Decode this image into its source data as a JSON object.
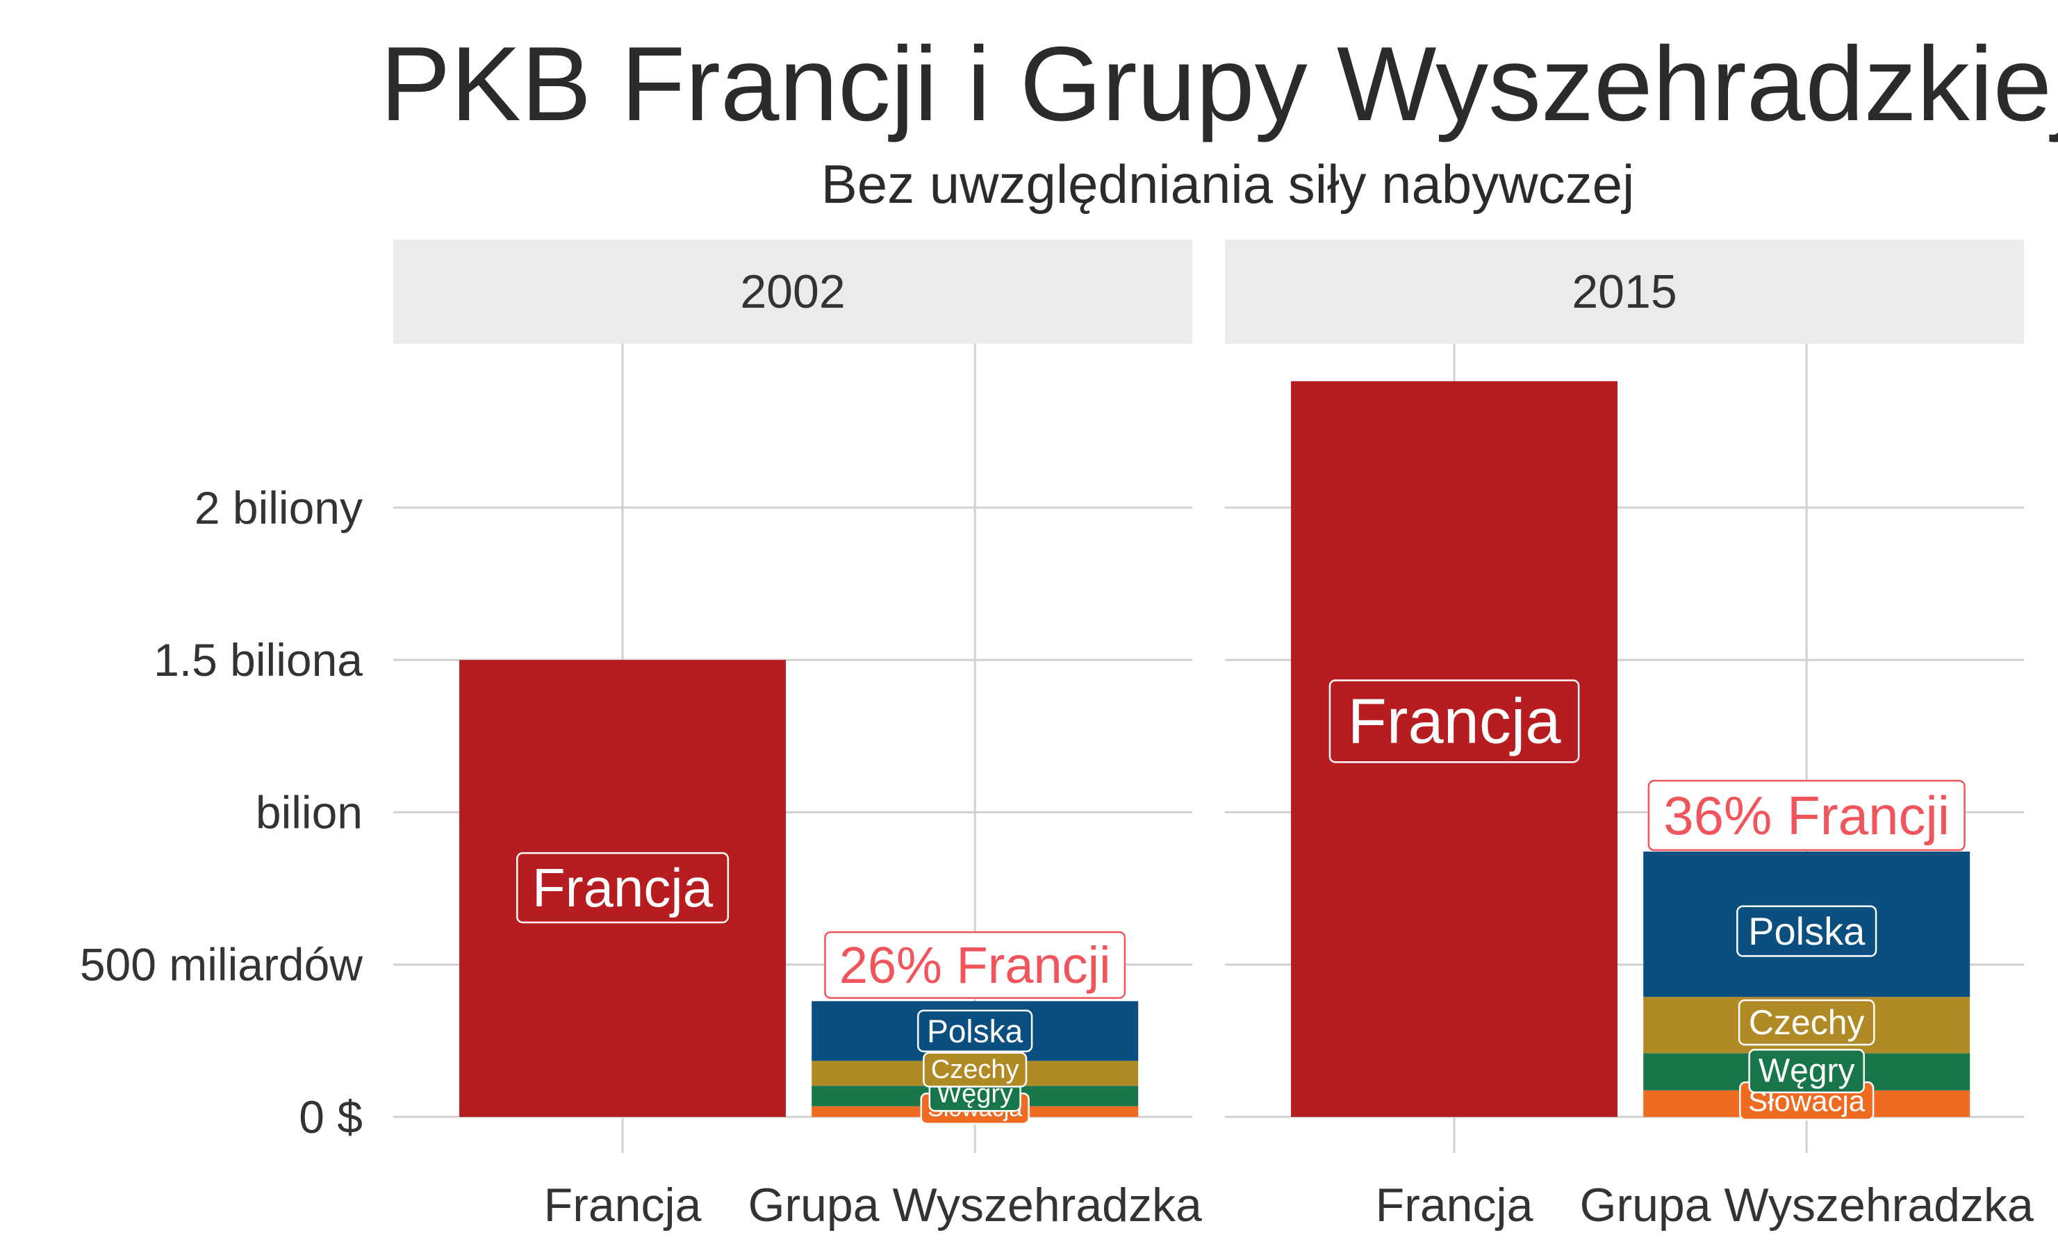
{
  "chart_data": {
    "type": "bar",
    "title": "PKB Francji i Grupy Wyszehradzkiej",
    "subtitle": "Bez uwzględniania siły nabywczej",
    "categories": [
      "Francja",
      "Grupa Wyszehradzka"
    ],
    "y_ticks": [
      {
        "value": 0,
        "label": "0 $"
      },
      {
        "value": 500,
        "label": "500 miliardów"
      },
      {
        "value": 1000,
        "label": "bilion"
      },
      {
        "value": 1500,
        "label": "1.5 biliona"
      },
      {
        "value": 2000,
        "label": "2 biliony"
      }
    ],
    "ylim": [
      0,
      2550
    ],
    "y_unit": "miliardy USD",
    "grid": true,
    "panels": [
      {
        "facet": "2002",
        "bars": [
          {
            "category": "Francja",
            "stack": [
              {
                "name": "Francja",
                "value": 1500,
                "color": "#b71c20"
              }
            ]
          },
          {
            "category": "Grupa Wyszehradzka",
            "share_label": "26% Francji",
            "stack": [
              {
                "name": "Słowacja",
                "value": 35,
                "color": "#f06b22"
              },
              {
                "name": "Węgry",
                "value": 67,
                "color": "#18764a"
              },
              {
                "name": "Czechy",
                "value": 82,
                "color": "#b08a24"
              },
              {
                "name": "Polska",
                "value": 196,
                "color": "#0b4f80"
              }
            ]
          }
        ]
      },
      {
        "facet": "2015",
        "bars": [
          {
            "category": "Francja",
            "stack": [
              {
                "name": "Francja",
                "value": 2415,
                "color": "#b71c20"
              }
            ]
          },
          {
            "category": "Grupa Wyszehradzka",
            "share_label": "36% Francji",
            "stack": [
              {
                "name": "Słowacja",
                "value": 87,
                "color": "#f06b22"
              },
              {
                "name": "Węgry",
                "value": 122,
                "color": "#18764a"
              },
              {
                "name": "Czechy",
                "value": 185,
                "color": "#b08a24"
              },
              {
                "name": "Polska",
                "value": 477,
                "color": "#0b4f80"
              }
            ]
          }
        ]
      }
    ],
    "colors": {
      "share_label": "#f2545b",
      "bar_label_text": "#ffffff",
      "strip_bg": "#ebebeb"
    }
  }
}
